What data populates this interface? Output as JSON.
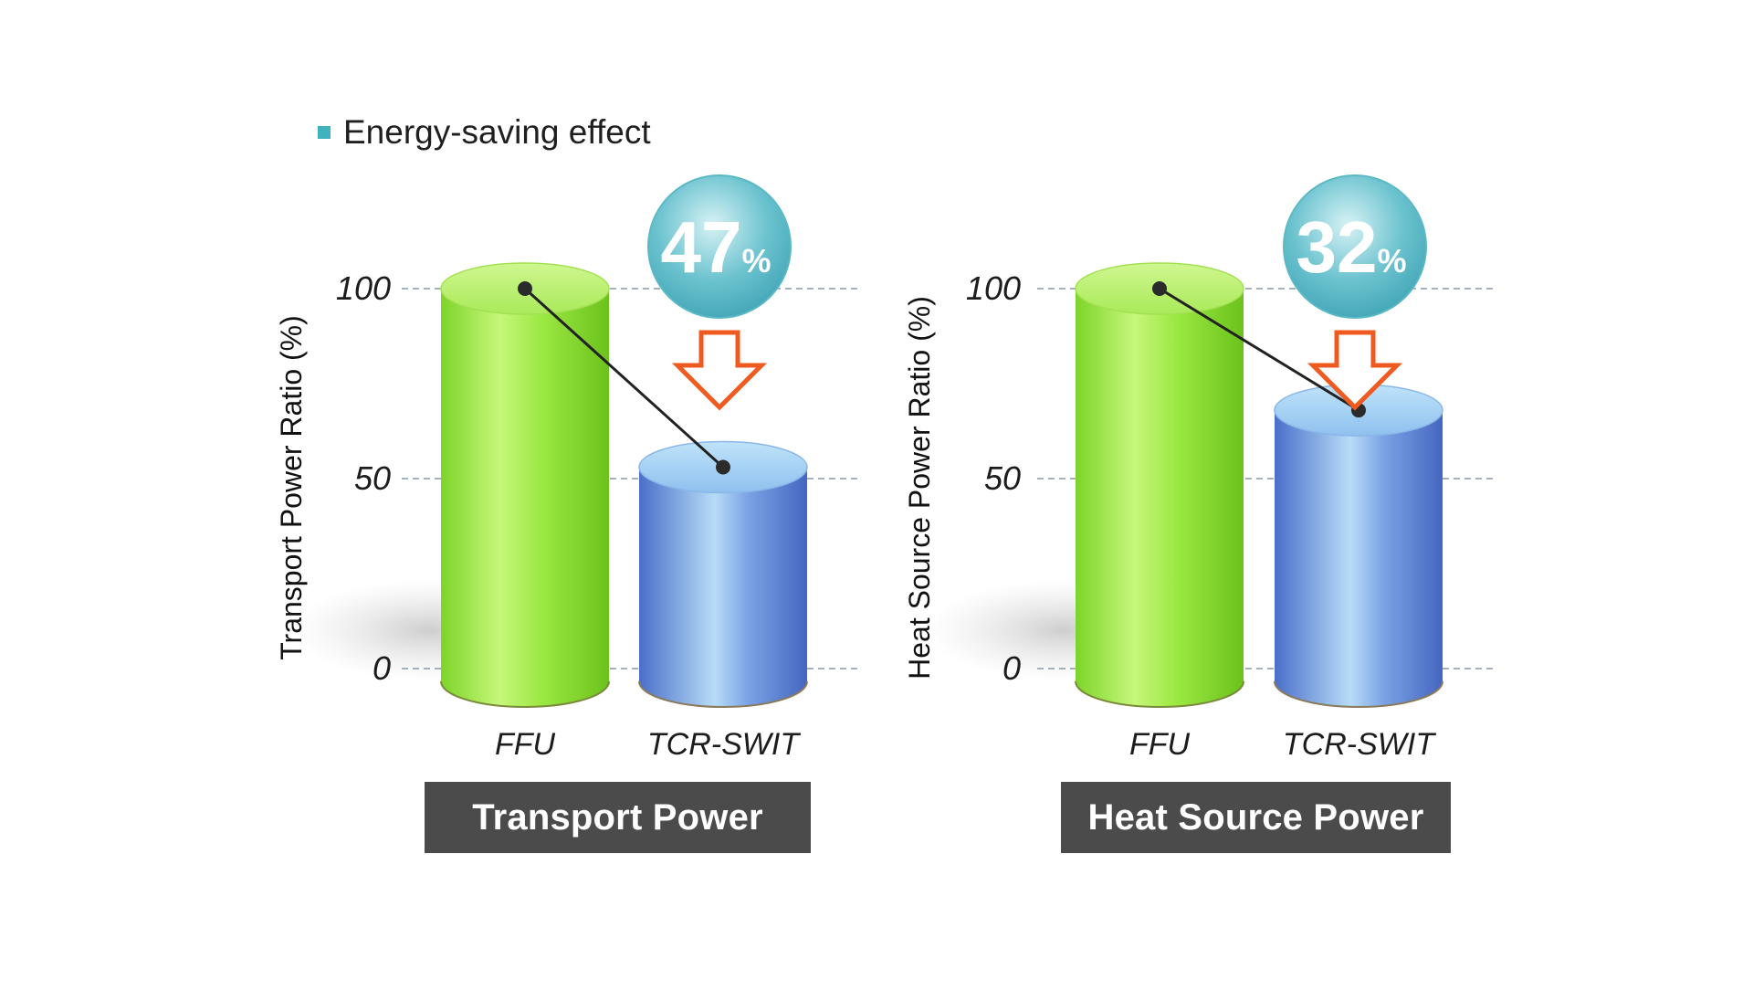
{
  "legend": {
    "label": "Energy-saving effect",
    "color": "#3fb2bd"
  },
  "chart_data": [
    {
      "type": "bar",
      "ylabel": "Transport Power Ratio (%)",
      "ylim": [
        0,
        100
      ],
      "yticks": [
        "0",
        "50",
        "100"
      ],
      "categories": [
        "FFU",
        "TCR-SWIT"
      ],
      "values": [
        100,
        53
      ],
      "colors": [
        "#8ee03a",
        "#5f8ad8"
      ],
      "reduction": {
        "value": "47",
        "unit": "%"
      },
      "caption": "Transport Power",
      "grid": "dashed"
    },
    {
      "type": "bar",
      "ylabel": "Heat Source Power Ratio (%)",
      "ylim": [
        0,
        100
      ],
      "yticks": [
        "0",
        "50",
        "100"
      ],
      "categories": [
        "FFU",
        "TCR-SWIT"
      ],
      "values": [
        100,
        68
      ],
      "colors": [
        "#8ee03a",
        "#5f8ad8"
      ],
      "reduction": {
        "value": "32",
        "unit": "%"
      },
      "caption": "Heat Source Power",
      "grid": "dashed"
    }
  ]
}
